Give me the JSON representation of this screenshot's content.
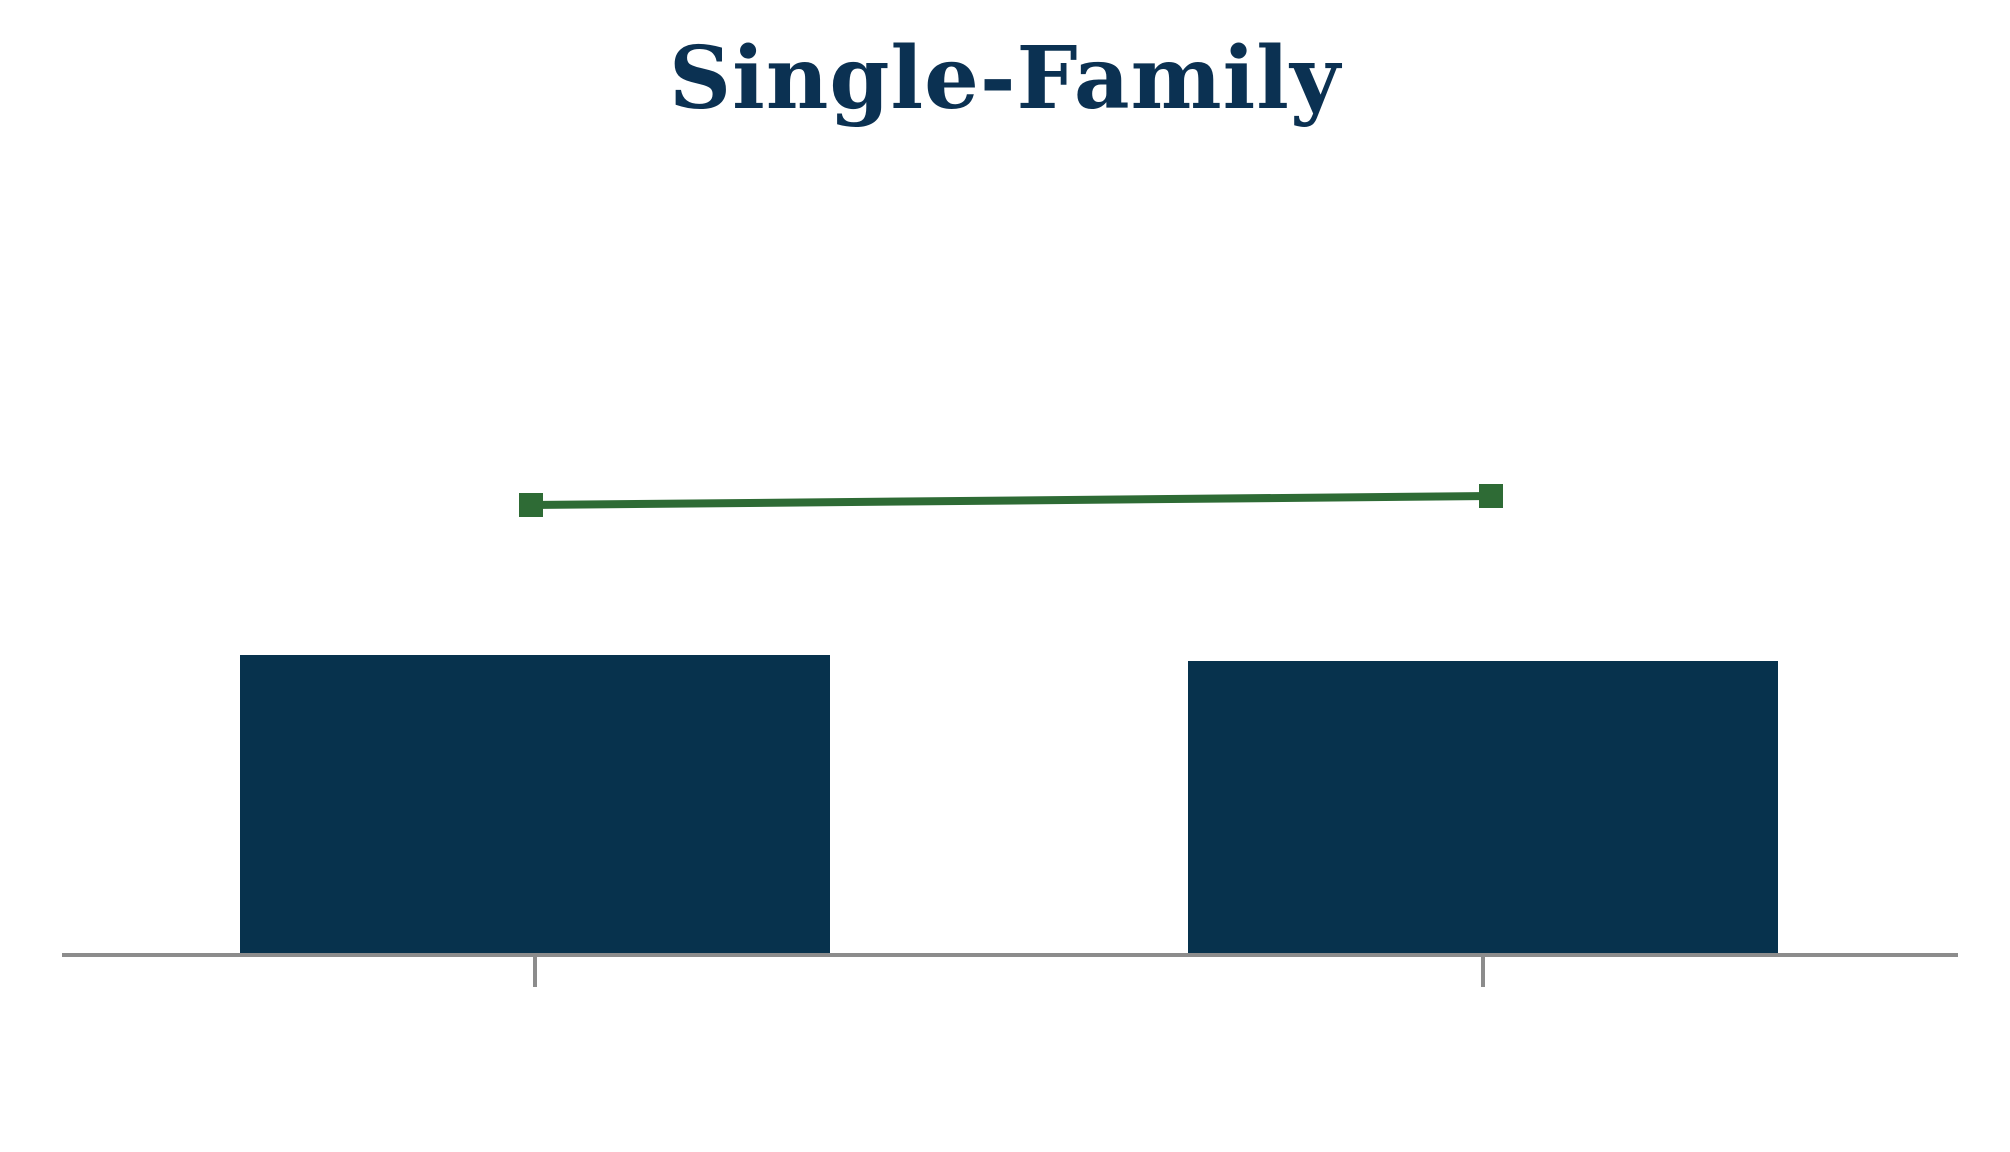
{
  "colors": {
    "title": "#0B3152",
    "bar": "#07324D",
    "line": "#2E6B35",
    "axis": "#8C8C8C",
    "background": "#FFFFFF"
  },
  "chart_data": {
    "type": "bar",
    "title": "Single-Family",
    "categories": [
      "",
      ""
    ],
    "series": [
      {
        "kind": "bar",
        "values": [
          100,
          98
        ]
      },
      {
        "kind": "line",
        "marker": "square",
        "values": [
          150,
          153
        ]
      }
    ],
    "ylim": [
      0,
      200
    ],
    "grid": false,
    "legend": "none"
  }
}
